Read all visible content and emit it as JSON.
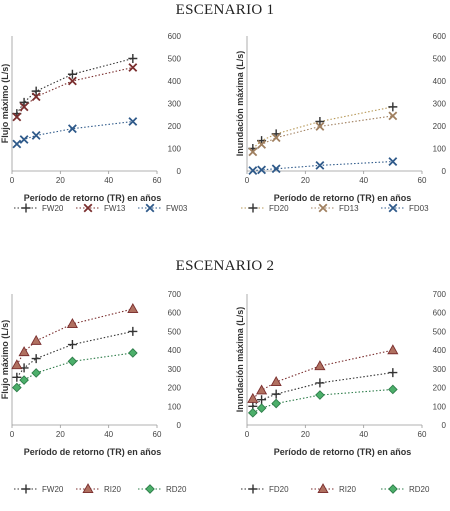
{
  "headings": [
    "ESCENARIO 1",
    "ESCENARIO 2"
  ],
  "chart_data": [
    {
      "type": "line",
      "xlabel": "Período de retorno (TR) en años",
      "ylabel": "Flujo máximo (L/s)",
      "xlim": [
        0,
        60
      ],
      "xticks": [
        0,
        20,
        40,
        60
      ],
      "ylim": [
        0,
        600
      ],
      "yticks": [
        0,
        100,
        200,
        300,
        400,
        500,
        600
      ],
      "x": [
        2,
        5,
        10,
        25,
        50
      ],
      "series": [
        {
          "name": "FW20",
          "marker": "plus",
          "color": "#333333",
          "values": [
            255,
            305,
            355,
            430,
            500
          ]
        },
        {
          "name": "FW13",
          "marker": "x",
          "color": "#7a2e2e",
          "values": [
            240,
            285,
            330,
            400,
            460
          ]
        },
        {
          "name": "FW03",
          "marker": "x",
          "color": "#2f5a8a",
          "values": [
            120,
            140,
            158,
            188,
            220
          ]
        }
      ]
    },
    {
      "type": "line",
      "xlabel": "Período de retorno (TR) en años",
      "ylabel": "Inundación máxima (L/s)",
      "xlim": [
        0,
        60
      ],
      "xticks": [
        0,
        20,
        40,
        60
      ],
      "ylim": [
        0,
        600
      ],
      "yticks": [
        0,
        100,
        200,
        300,
        400,
        500,
        600
      ],
      "x": [
        2,
        5,
        10,
        25,
        50
      ],
      "series": [
        {
          "name": "FD20",
          "marker": "plus",
          "color": "#333333",
          "line": "#b89a5a",
          "values": [
            100,
            135,
            165,
            220,
            285
          ]
        },
        {
          "name": "FD13",
          "marker": "x",
          "color": "#a08060",
          "line": "#a08060",
          "values": [
            85,
            118,
            148,
            198,
            245
          ]
        },
        {
          "name": "FD03",
          "marker": "x",
          "color": "#2f5a8a",
          "line": "#2f5a8a",
          "values": [
            2,
            5,
            10,
            25,
            42
          ]
        }
      ]
    },
    {
      "type": "line",
      "xlabel": "Período de retorno (TR) en años",
      "ylabel": "Flujo máximo (L/s)",
      "xlim": [
        0,
        60
      ],
      "xticks": [
        0,
        20,
        40,
        60
      ],
      "ylim": [
        0,
        700
      ],
      "yticks": [
        0,
        100,
        200,
        300,
        400,
        500,
        600,
        700
      ],
      "x": [
        2,
        5,
        10,
        25,
        50
      ],
      "series": [
        {
          "name": "FW20",
          "marker": "plus",
          "color": "#333333",
          "values": [
            255,
            305,
            355,
            430,
            500
          ]
        },
        {
          "name": "RI20",
          "marker": "triangle",
          "color": "#7a2e2e",
          "fill": "#b07060",
          "values": [
            320,
            390,
            450,
            540,
            620
          ]
        },
        {
          "name": "RD20",
          "marker": "diamond",
          "color": "#2e7d4a",
          "fill": "#4caf6a",
          "values": [
            200,
            240,
            278,
            340,
            385
          ]
        }
      ]
    },
    {
      "type": "line",
      "xlabel": "Período de retorno (TR) en años",
      "ylabel": "Inundación máxima (L/s)",
      "xlim": [
        0,
        60
      ],
      "xticks": [
        0,
        20,
        40,
        60
      ],
      "ylim": [
        0,
        700
      ],
      "yticks": [
        0,
        100,
        200,
        300,
        400,
        500,
        600,
        700
      ],
      "x": [
        2,
        5,
        10,
        25,
        50
      ],
      "series": [
        {
          "name": "FD20",
          "marker": "plus",
          "color": "#333333",
          "values": [
            100,
            135,
            165,
            225,
            280
          ]
        },
        {
          "name": "RI20",
          "marker": "triangle",
          "color": "#7a2e2e",
          "fill": "#b07060",
          "values": [
            140,
            185,
            230,
            315,
            400
          ]
        },
        {
          "name": "RD20",
          "marker": "diamond",
          "color": "#2e7d4a",
          "fill": "#4caf6a",
          "values": [
            65,
            90,
            115,
            160,
            190
          ]
        }
      ]
    }
  ]
}
